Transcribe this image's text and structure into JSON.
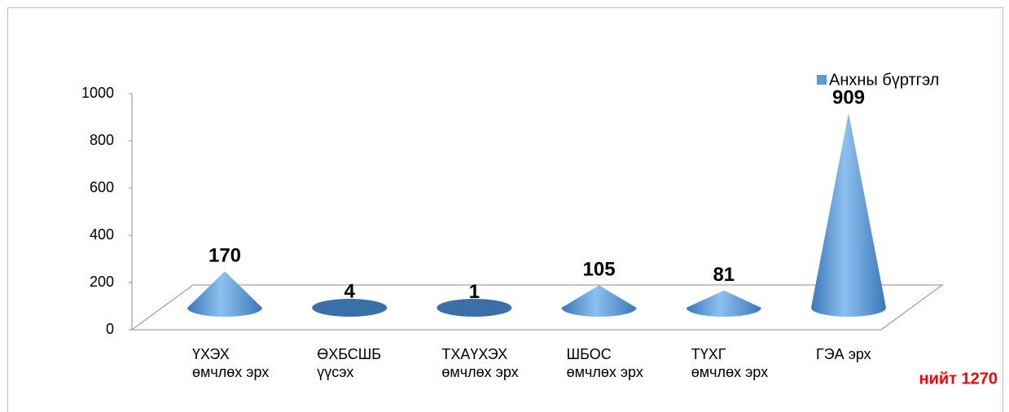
{
  "chart_data": {
    "type": "cone",
    "categories": [
      "ҮХЭХ\nөмчлөх эрх",
      "ӨХБСШБ\nүүсэх",
      "ТХАҮХЭХ\nөмчлөх эрх",
      "ШБОС\nөмчлөх эрх",
      "ТҮХГ\nөмчлөх эрх",
      "ГЭА эрх"
    ],
    "series": [
      {
        "name": "Анхны бүртгэл",
        "color": "#5b9bd5",
        "values": [
          170,
          4,
          1,
          105,
          81,
          909
        ]
      }
    ],
    "ylim": [
      0,
      1000
    ],
    "yticks": [
      0,
      200,
      400,
      600,
      800,
      1000
    ],
    "annotation": "нийт 1270"
  }
}
